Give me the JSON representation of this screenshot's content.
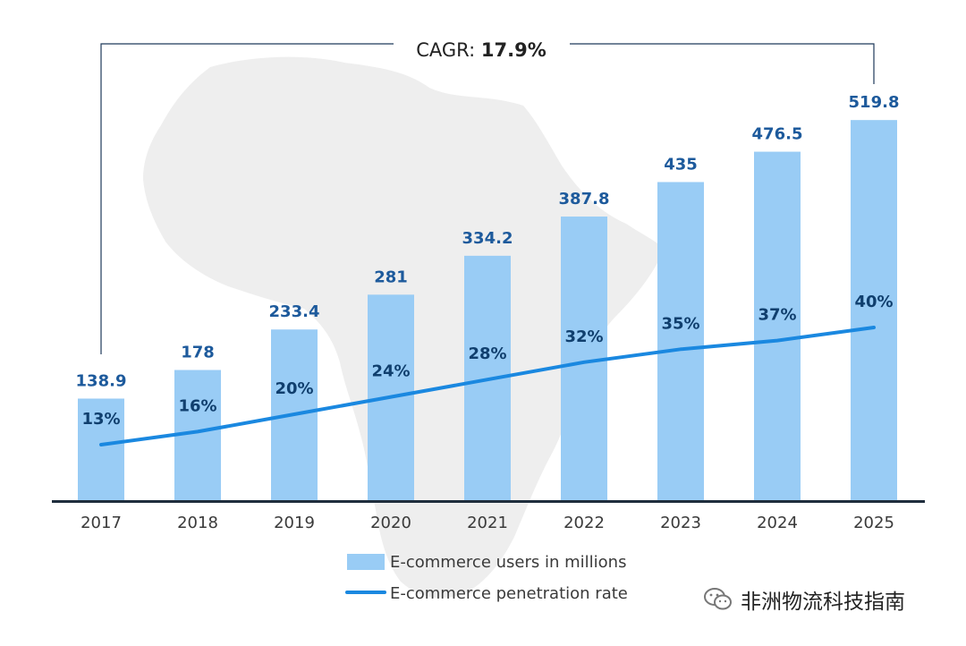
{
  "chart_data": {
    "type": "bar",
    "categories": [
      "2017",
      "2018",
      "2019",
      "2020",
      "2021",
      "2022",
      "2023",
      "2024",
      "2025"
    ],
    "series": [
      {
        "name": "E-commerce users in millions",
        "kind": "bar",
        "values": [
          138.9,
          178,
          233.4,
          281,
          334.2,
          387.8,
          435,
          476.5,
          519.8
        ],
        "labels": [
          "138.9",
          "178",
          "233.4",
          "281",
          "334.2",
          "387.8",
          "435",
          "476.5",
          "519.8"
        ],
        "color": "#99ccf5"
      },
      {
        "name": "E-commerce penetration rate",
        "kind": "line",
        "unit": "%",
        "values": [
          13,
          16,
          20,
          24,
          28,
          32,
          35,
          37,
          40
        ],
        "labels": [
          "13%",
          "16%",
          "20%",
          "24%",
          "28%",
          "32%",
          "35%",
          "37%",
          "40%"
        ],
        "color": "#1a88e0"
      }
    ],
    "annotation": {
      "prefix": "CAGR: ",
      "value": "17.9%"
    },
    "legend_position": "bottom-center",
    "ylim": [
      0,
      520
    ]
  },
  "colors": {
    "bar": "#99ccf5",
    "line": "#1a88e0",
    "value_label": "#1d5a9c",
    "rate_label": "#103f6e",
    "axis": "#1f2e3d",
    "bracket": "#1f3a5a",
    "map": "#eeeeee"
  },
  "watermark": {
    "text": "非洲物流科技指南",
    "icon": "wechat-icon"
  }
}
